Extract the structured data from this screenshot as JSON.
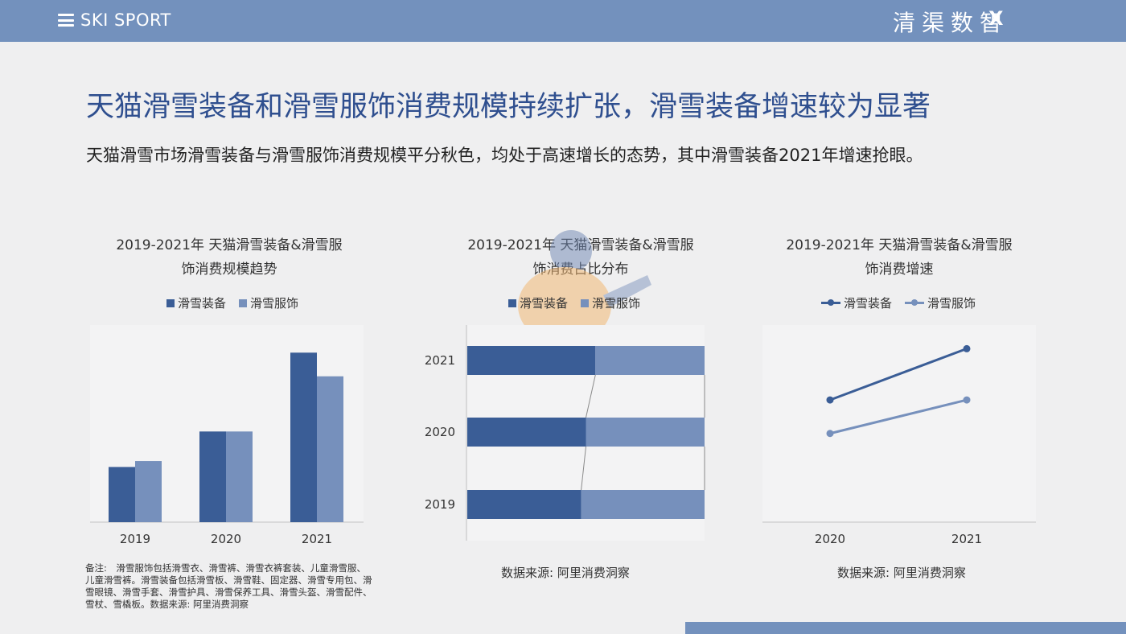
{
  "header": {
    "brand_left": "SKI SPORT",
    "brand_right": "清渠数智",
    "brand_x": "X"
  },
  "headline": "天猫滑雪装备和滑雪服饰消费规模持续扩张，滑雪装备增速较为显著",
  "subline": "天猫滑雪市场滑雪装备与滑雪服饰消费规模平分秋色，均处于高速增长的态势，其中滑雪装备2021年增速抢眼。",
  "colors": {
    "equipment": "#3a5d96",
    "apparel": "#7690bc",
    "accent_bar": "#7391bd"
  },
  "charts": {
    "chart1": {
      "title_line1": "2019-2021年 天猫滑雪装备&滑雪服",
      "title_line2": "饰消费规模趋势",
      "legend_equipment": "滑雪装备",
      "legend_apparel": "滑雪服饰"
    },
    "chart2": {
      "title_line1": "2019-2021年 天猫滑雪装备&滑雪服",
      "title_line2": "饰消费占比分布",
      "legend_equipment": "滑雪装备",
      "legend_apparel": "滑雪服饰",
      "source": "数据来源: 阿里消费洞察"
    },
    "chart3": {
      "title_line1": "2019-2021年 天猫滑雪装备&滑雪服",
      "title_line2": "饰消费增速",
      "legend_equipment": "滑雪装备",
      "legend_apparel": "滑雪服饰",
      "source": "数据来源: 阿里消费洞察"
    }
  },
  "note": "备注:　滑雪服饰包括滑雪衣、滑雪裤、滑雪衣裤套装、儿童滑雪服、儿童滑雪裤。滑雪装备包括滑雪板、滑雪鞋、固定器、滑雪专用包、滑雪眼镜、滑雪手套、滑雪护具、滑雪保养工具、滑雪头盔、滑雪配件、雪杖、雪橇板。数据来源: 阿里消费洞察",
  "chart_data": [
    {
      "type": "bar",
      "categories": [
        "2019",
        "2020",
        "2021"
      ],
      "series": [
        {
          "name": "滑雪装备",
          "values": [
            28,
            46,
            86
          ]
        },
        {
          "name": "滑雪服饰",
          "values": [
            31,
            46,
            74
          ]
        }
      ],
      "ylim": [
        0,
        100
      ]
    },
    {
      "type": "bar",
      "orientation": "horizontal-stacked-100",
      "categories": [
        "2021",
        "2020",
        "2019"
      ],
      "series": [
        {
          "name": "滑雪装备",
          "values": [
            54,
            50,
            48
          ]
        },
        {
          "name": "滑雪服饰",
          "values": [
            46,
            50,
            52
          ]
        }
      ],
      "xlim": [
        0,
        100
      ]
    },
    {
      "type": "line",
      "x": [
        "2020",
        "2021"
      ],
      "series": [
        {
          "name": "滑雪装备",
          "values": [
            62,
            88
          ]
        },
        {
          "name": "滑雪服饰",
          "values": [
            45,
            62
          ]
        }
      ],
      "ylim": [
        0,
        100
      ]
    }
  ]
}
